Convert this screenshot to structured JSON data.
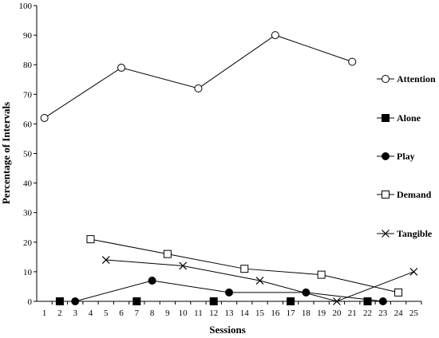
{
  "chart_data": {
    "type": "line",
    "xlabel": "Sessions",
    "ylabel": "Percentage of Intervals",
    "xlim": [
      0.5,
      25.5
    ],
    "ylim": [
      0,
      100
    ],
    "x_ticks": [
      1,
      2,
      3,
      4,
      5,
      6,
      7,
      8,
      9,
      10,
      11,
      12,
      13,
      14,
      15,
      16,
      17,
      18,
      19,
      20,
      21,
      22,
      23,
      24,
      25
    ],
    "y_ticks": [
      0,
      10,
      20,
      30,
      40,
      50,
      60,
      70,
      80,
      90,
      100
    ],
    "grid": false,
    "legend_position": "right",
    "series": [
      {
        "name": "Attention",
        "marker": "open-circle",
        "x": [
          1,
          6,
          11,
          16,
          21
        ],
        "y": [
          62,
          79,
          72,
          90,
          81
        ]
      },
      {
        "name": "Alone",
        "marker": "filled-square",
        "x": [
          2,
          7,
          12,
          17,
          22
        ],
        "y": [
          0,
          0,
          0,
          0,
          0
        ]
      },
      {
        "name": "Play",
        "marker": "filled-circle",
        "x": [
          3,
          8,
          13,
          18,
          23
        ],
        "y": [
          0,
          7,
          3,
          3,
          0
        ]
      },
      {
        "name": "Demand",
        "marker": "open-square",
        "x": [
          4,
          9,
          14,
          19,
          24
        ],
        "y": [
          21,
          16,
          11,
          9,
          3
        ]
      },
      {
        "name": "Tangible",
        "marker": "x",
        "x": [
          5,
          10,
          15,
          20,
          25
        ],
        "y": [
          14,
          12,
          7,
          0,
          10
        ]
      }
    ]
  }
}
